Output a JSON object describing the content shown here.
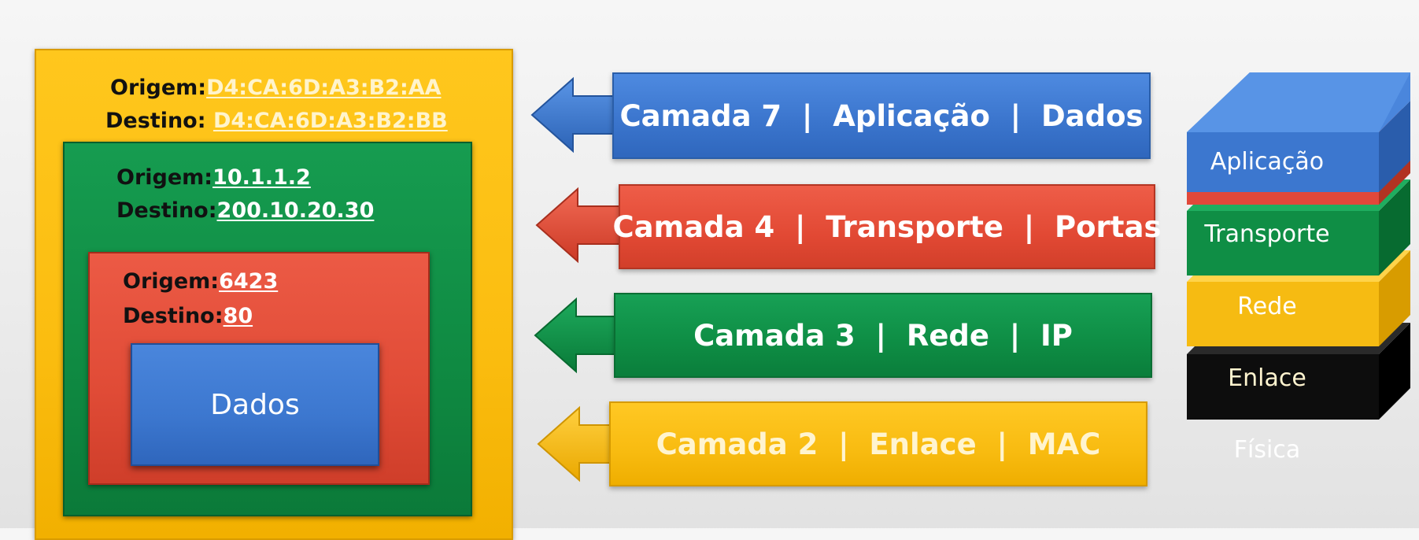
{
  "encapsulation": {
    "ethernet": {
      "origin_label": "Origem:",
      "origin_value": "D4:CA:6D:A3:B2:AA",
      "dest_label": "Destino: ",
      "dest_value": "D4:CA:6D:A3:B2:BB"
    },
    "ip": {
      "origin_label": "Origem:",
      "origin_value": "10.1.1.2",
      "dest_label": "Destino:",
      "dest_value": "200.10.20.30"
    },
    "transport": {
      "origin_label": "Origem:",
      "origin_value": "6423",
      "dest_label": "Destino:",
      "dest_value": "80"
    },
    "payload": {
      "label": "Dados"
    }
  },
  "layers": [
    {
      "label": "Camada 7  |  Aplicação  |  Dados",
      "color": "#3a74cc"
    },
    {
      "label": "Camada 4  |  Transporte  |  Portas",
      "color": "#e24934"
    },
    {
      "label": "Camada 3  |  Rede  |  IP",
      "color": "#0e8d44"
    },
    {
      "label": "Camada 2  |  Enlace  |  MAC",
      "color": "#f8bb10"
    }
  ],
  "stack": [
    {
      "label": "Aplicação",
      "color": "#3a74cc"
    },
    {
      "label": "Transporte",
      "color": "#e24934"
    },
    {
      "label": "Rede",
      "color": "#0e8d44"
    },
    {
      "label": "Enlace",
      "color": "#f8bb10"
    },
    {
      "label": "Física",
      "color": "#111111"
    }
  ]
}
